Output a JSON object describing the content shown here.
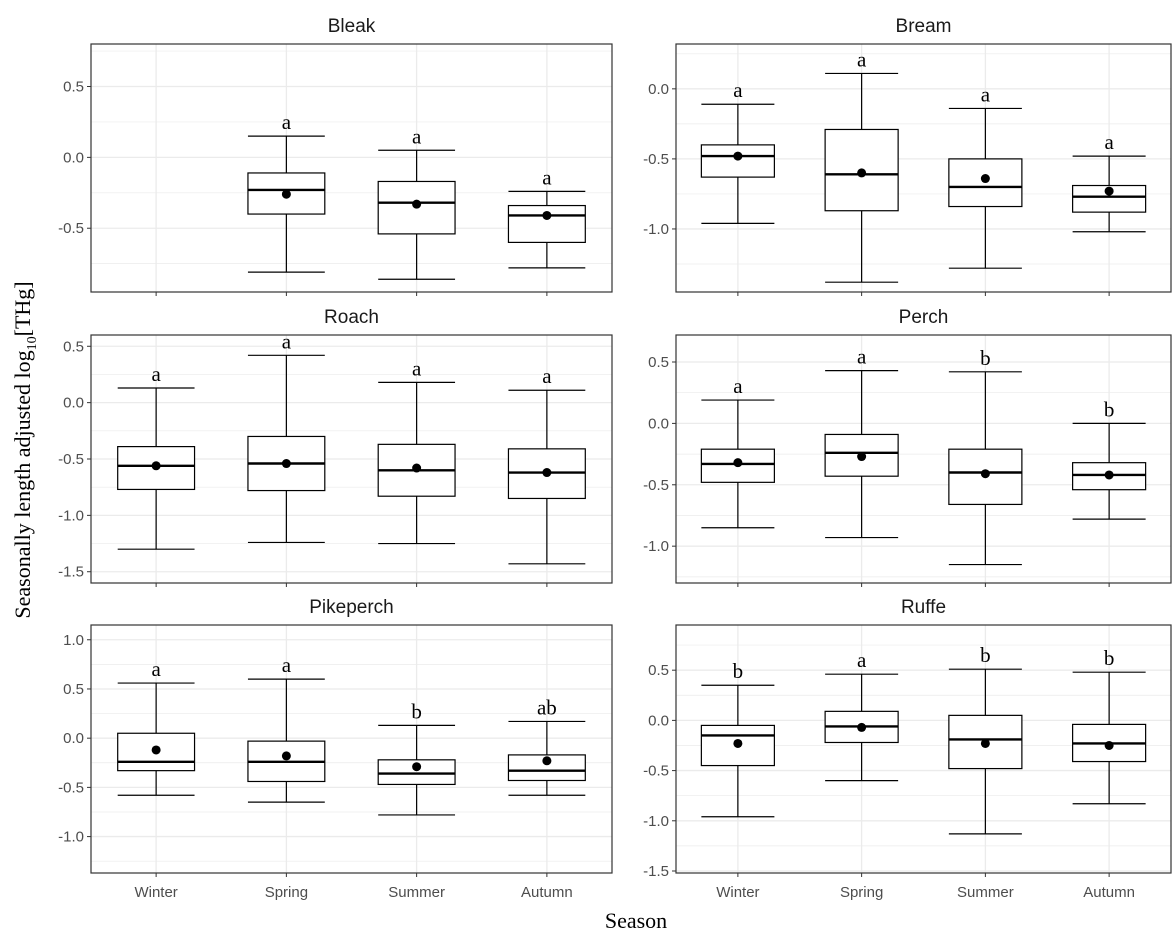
{
  "chart_data": {
    "type": "box",
    "xlabel": "Season",
    "ylabel": {
      "pre": "Seasonally length adjusted log",
      "sub": "10",
      "post": "[THg]"
    },
    "categories": [
      "Winter",
      "Spring",
      "Summer",
      "Autumn"
    ],
    "panels": [
      {
        "title": "Bleak",
        "ylim": [
          -0.95,
          0.8
        ],
        "yticks": [
          -0.5,
          0.0,
          0.5
        ],
        "ytick_labels": [
          "-0.5",
          "0.0",
          "0.5"
        ],
        "boxes": [
          null,
          {
            "season": "Spring",
            "min": -0.81,
            "q1": -0.4,
            "median": -0.23,
            "q3": -0.11,
            "max": 0.15,
            "mean": -0.26,
            "letter": "a"
          },
          {
            "season": "Summer",
            "min": -0.86,
            "q1": -0.54,
            "median": -0.32,
            "q3": -0.17,
            "max": 0.05,
            "mean": -0.33,
            "letter": "a"
          },
          {
            "season": "Autumn",
            "min": -0.78,
            "q1": -0.6,
            "median": -0.41,
            "q3": -0.34,
            "max": -0.24,
            "mean": -0.41,
            "letter": "a"
          }
        ]
      },
      {
        "title": "Bream",
        "ylim": [
          -1.45,
          0.32
        ],
        "yticks": [
          -1.0,
          -0.5,
          0.0
        ],
        "ytick_labels": [
          "-1.0",
          "-0.5",
          "0.0"
        ],
        "boxes": [
          {
            "season": "Winter",
            "min": -0.96,
            "q1": -0.63,
            "median": -0.48,
            "q3": -0.4,
            "max": -0.11,
            "mean": -0.48,
            "letter": "a"
          },
          {
            "season": "Spring",
            "min": -1.38,
            "q1": -0.87,
            "median": -0.61,
            "q3": -0.29,
            "max": 0.11,
            "mean": -0.6,
            "letter": "a"
          },
          {
            "season": "Summer",
            "min": -1.28,
            "q1": -0.84,
            "median": -0.7,
            "q3": -0.5,
            "max": -0.14,
            "mean": -0.64,
            "letter": "a"
          },
          {
            "season": "Autumn",
            "min": -1.02,
            "q1": -0.88,
            "median": -0.77,
            "q3": -0.69,
            "max": -0.48,
            "mean": -0.73,
            "letter": "a"
          }
        ]
      },
      {
        "title": "Roach",
        "ylim": [
          -1.6,
          0.6
        ],
        "yticks": [
          -1.5,
          -1.0,
          -0.5,
          0.0,
          0.5
        ],
        "ytick_labels": [
          "-1.5",
          "-1.0",
          "-0.5",
          "0.0",
          "0.5"
        ],
        "boxes": [
          {
            "season": "Winter",
            "min": -1.3,
            "q1": -0.77,
            "median": -0.56,
            "q3": -0.39,
            "max": 0.13,
            "mean": -0.56,
            "letter": "a"
          },
          {
            "season": "Spring",
            "min": -1.24,
            "q1": -0.78,
            "median": -0.54,
            "q3": -0.3,
            "max": 0.42,
            "mean": -0.54,
            "letter": "a"
          },
          {
            "season": "Summer",
            "min": -1.25,
            "q1": -0.83,
            "median": -0.6,
            "q3": -0.37,
            "max": 0.18,
            "mean": -0.58,
            "letter": "a"
          },
          {
            "season": "Autumn",
            "min": -1.43,
            "q1": -0.85,
            "median": -0.62,
            "q3": -0.41,
            "max": 0.11,
            "mean": -0.62,
            "letter": "a"
          }
        ]
      },
      {
        "title": "Perch",
        "ylim": [
          -1.3,
          0.72
        ],
        "yticks": [
          -1.0,
          -0.5,
          0.0,
          0.5
        ],
        "ytick_labels": [
          "-1.0",
          "-0.5",
          "0.0",
          "0.5"
        ],
        "boxes": [
          {
            "season": "Winter",
            "min": -0.85,
            "q1": -0.48,
            "median": -0.33,
            "q3": -0.21,
            "max": 0.19,
            "mean": -0.32,
            "letter": "a"
          },
          {
            "season": "Spring",
            "min": -0.93,
            "q1": -0.43,
            "median": -0.24,
            "q3": -0.09,
            "max": 0.43,
            "mean": -0.27,
            "letter": "a"
          },
          {
            "season": "Summer",
            "min": -1.15,
            "q1": -0.66,
            "median": -0.4,
            "q3": -0.21,
            "max": 0.42,
            "mean": -0.41,
            "letter": "b"
          },
          {
            "season": "Autumn",
            "min": -0.78,
            "q1": -0.54,
            "median": -0.42,
            "q3": -0.32,
            "max": 0.0,
            "mean": -0.42,
            "letter": "b"
          }
        ]
      },
      {
        "title": "Pikeperch",
        "ylim": [
          -1.37,
          1.15
        ],
        "yticks": [
          -1.0,
          -0.5,
          0.0,
          0.5,
          1.0
        ],
        "ytick_labels": [
          "-1.0",
          "-0.5",
          "0.0",
          "0.5",
          "1.0"
        ],
        "boxes": [
          {
            "season": "Winter",
            "min": -0.58,
            "q1": -0.33,
            "median": -0.24,
            "q3": 0.05,
            "max": 0.56,
            "mean": -0.12,
            "letter": "a"
          },
          {
            "season": "Spring",
            "min": -0.65,
            "q1": -0.44,
            "median": -0.24,
            "q3": -0.03,
            "max": 0.6,
            "mean": -0.18,
            "letter": "a"
          },
          {
            "season": "Summer",
            "min": -0.78,
            "q1": -0.47,
            "median": -0.36,
            "q3": -0.22,
            "max": 0.13,
            "mean": -0.29,
            "letter": "b"
          },
          {
            "season": "Autumn",
            "min": -0.58,
            "q1": -0.43,
            "median": -0.33,
            "q3": -0.17,
            "max": 0.17,
            "mean": -0.23,
            "letter": "ab"
          }
        ]
      },
      {
        "title": "Ruffe",
        "ylim": [
          -1.52,
          0.95
        ],
        "yticks": [
          -1.5,
          -1.0,
          -0.5,
          0.0,
          0.5
        ],
        "ytick_labels": [
          "-1.5",
          "-1.0",
          "-0.5",
          "0.0",
          "0.5"
        ],
        "boxes": [
          {
            "season": "Winter",
            "min": -0.96,
            "q1": -0.45,
            "median": -0.15,
            "q3": -0.05,
            "max": 0.35,
            "mean": -0.23,
            "letter": "b"
          },
          {
            "season": "Spring",
            "min": -0.6,
            "q1": -0.22,
            "median": -0.06,
            "q3": 0.09,
            "max": 0.46,
            "mean": -0.07,
            "letter": "a"
          },
          {
            "season": "Summer",
            "min": -1.13,
            "q1": -0.48,
            "median": -0.19,
            "q3": 0.05,
            "max": 0.51,
            "mean": -0.23,
            "letter": "b"
          },
          {
            "season": "Autumn",
            "min": -0.83,
            "q1": -0.41,
            "median": -0.23,
            "q3": -0.04,
            "max": 0.48,
            "mean": -0.25,
            "letter": "b"
          }
        ]
      }
    ],
    "grid": true,
    "colors": {
      "grid": "#ebebeb",
      "box_fill": "#ffffff",
      "line": "#000000",
      "mean_point": "#000000"
    }
  }
}
